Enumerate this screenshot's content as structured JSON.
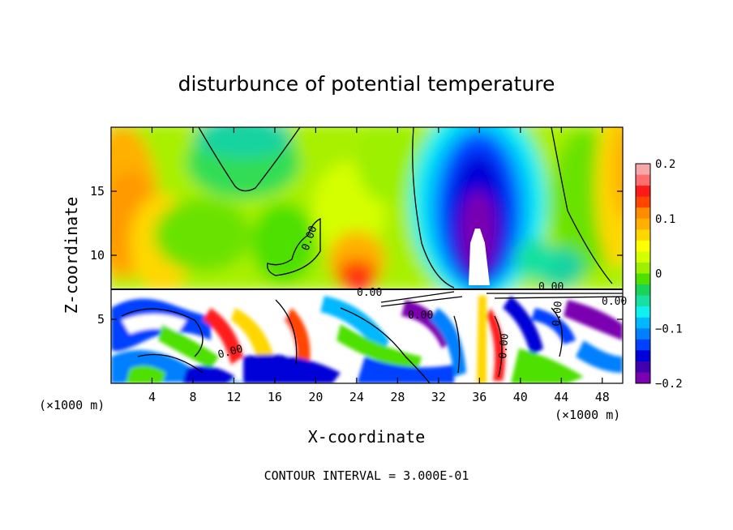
{
  "chart_data": {
    "type": "heatmap",
    "title": "disturbunce of potential temperature",
    "xlabel": "X-coordinate",
    "ylabel": "Z-coordinate",
    "x_unit_left": "(×1000 m)",
    "x_unit_right": "(×1000 m)",
    "xlim": [
      0,
      50
    ],
    "ylim": [
      0,
      20
    ],
    "x_ticks": [
      4,
      8,
      12,
      16,
      20,
      24,
      28,
      32,
      36,
      40,
      44,
      48
    ],
    "y_ticks": [
      5,
      10,
      15
    ],
    "colorbar": {
      "range": [
        -0.2,
        0.2
      ],
      "tick_values": [
        0.2,
        0.1,
        0,
        -0.1,
        -0.2
      ],
      "tick_labels": [
        "0.2",
        "0.1",
        "0",
        "−0.1",
        "−0.2"
      ],
      "colors": [
        "#f6a8a8",
        "#ff6e6e",
        "#ff1a1a",
        "#ff4500",
        "#ff8c00",
        "#ffb000",
        "#ffd700",
        "#ffff00",
        "#d4ff00",
        "#9cf000",
        "#4ee000",
        "#19d35a",
        "#17e0a0",
        "#0ff0f0",
        "#00b8ff",
        "#0080ff",
        "#0040ff",
        "#0000d8",
        "#3f00b0",
        "#7a00b0"
      ]
    },
    "contour_labels": [
      "0.00",
      "0.00",
      "0.00",
      "0.00",
      "0.00",
      "0.00",
      "0.00",
      "0.00"
    ],
    "footer": "CONTOUR INTERVAL = 3.000E-01"
  }
}
